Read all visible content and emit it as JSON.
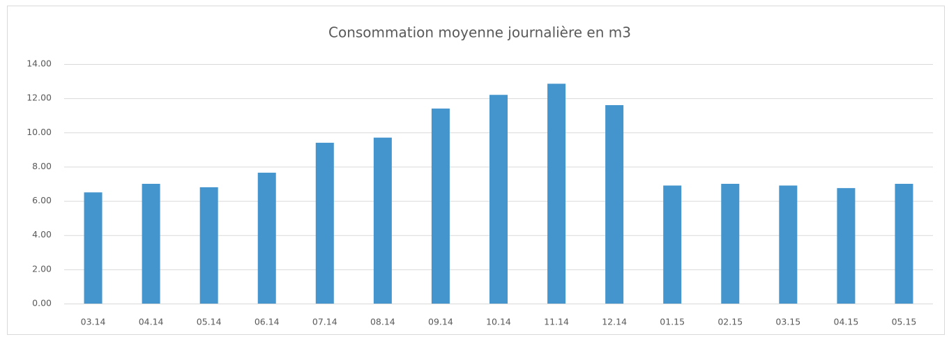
{
  "chart_data": {
    "type": "bar",
    "title": "Consommation moyenne journalière en m3",
    "categories": [
      "03.14",
      "04.14",
      "05.14",
      "06.14",
      "07.14",
      "08.14",
      "09.14",
      "10.14",
      "11.14",
      "12.14",
      "01.15",
      "02.15",
      "03.15",
      "04.15",
      "05.15"
    ],
    "values": [
      6.5,
      7.0,
      6.8,
      7.65,
      9.4,
      9.7,
      11.4,
      12.2,
      12.85,
      11.6,
      6.9,
      7.0,
      6.9,
      6.75,
      7.0
    ],
    "color": "#4495cd",
    "ylim": [
      0,
      14
    ],
    "yticks": [
      {
        "value": 0,
        "label": "0.00"
      },
      {
        "value": 2,
        "label": "2.00"
      },
      {
        "value": 4,
        "label": "4.00"
      },
      {
        "value": 6,
        "label": "6.00"
      },
      {
        "value": 8,
        "label": "8.00"
      },
      {
        "value": 10,
        "label": "10.00"
      },
      {
        "value": 12,
        "label": "12.00"
      },
      {
        "value": 14,
        "label": "14.00"
      }
    ],
    "grid": true
  }
}
